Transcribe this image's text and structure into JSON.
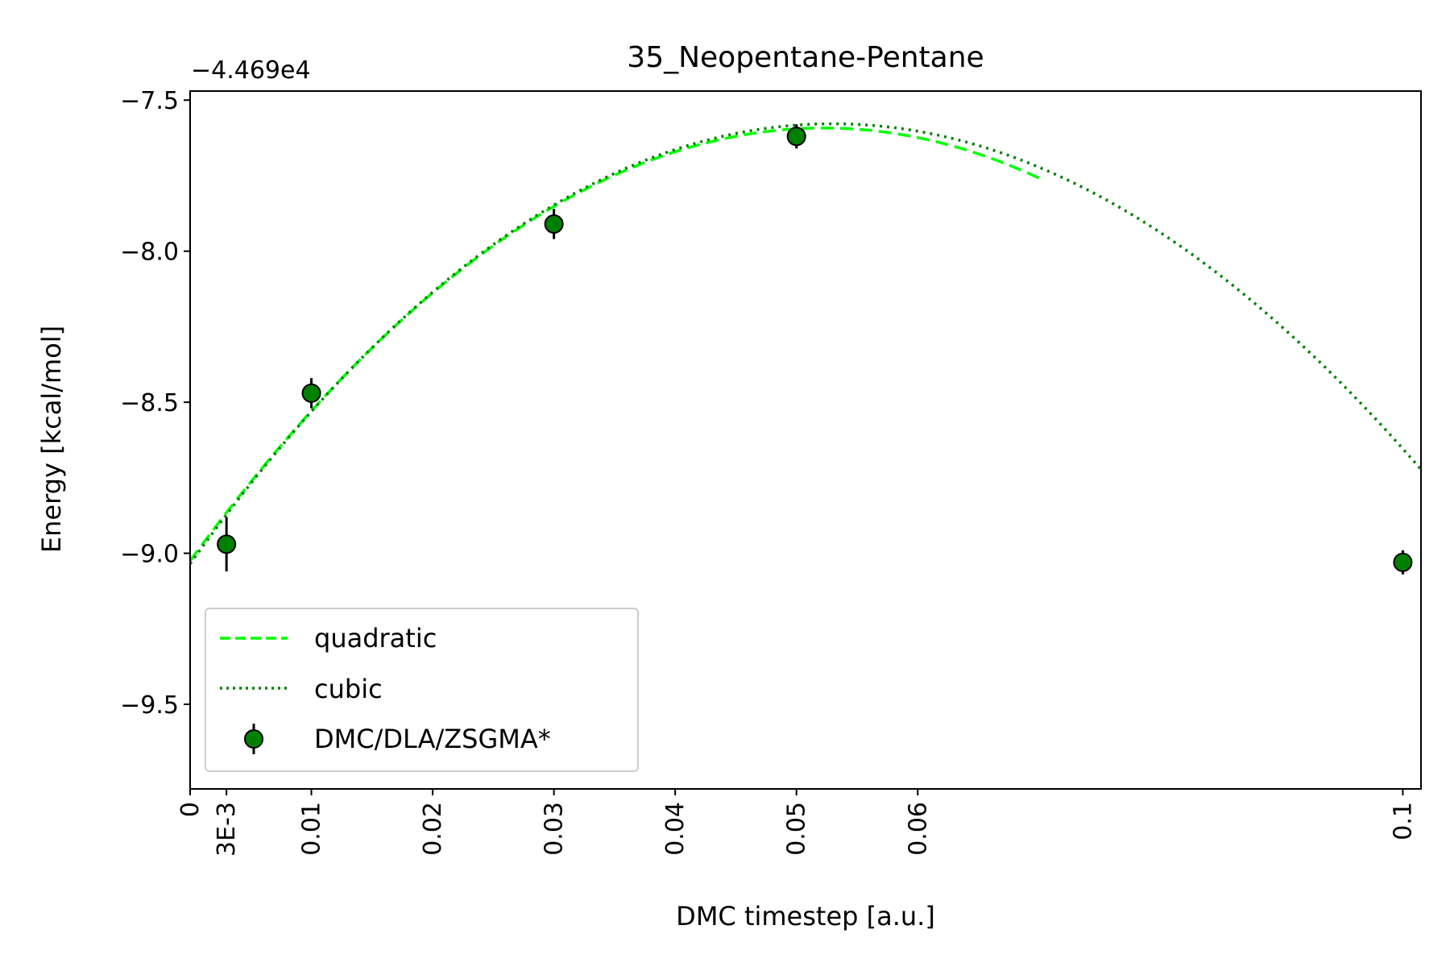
{
  "chart_data": {
    "type": "scatter",
    "title": "35_Neopentane-Pentane",
    "xlabel": "DMC timestep [a.u.]",
    "ylabel": "Energy [kcal/mol]",
    "y_offset_label": "−4.469e4",
    "xlim": [
      0,
      0.1015
    ],
    "ylim": [
      -9.78,
      -7.47
    ],
    "x_ticks": [
      {
        "value": 0,
        "label": "0"
      },
      {
        "value": 0.003,
        "label": "3E-3"
      },
      {
        "value": 0.01,
        "label": "0.01"
      },
      {
        "value": 0.02,
        "label": "0.02"
      },
      {
        "value": 0.03,
        "label": "0.03"
      },
      {
        "value": 0.04,
        "label": "0.04"
      },
      {
        "value": 0.05,
        "label": "0.05"
      },
      {
        "value": 0.06,
        "label": "0.06"
      },
      {
        "value": 0.1,
        "label": "0.1"
      }
    ],
    "y_ticks": [
      {
        "value": -7.5,
        "label": "−7.5"
      },
      {
        "value": -8.0,
        "label": "−8.0"
      },
      {
        "value": -8.5,
        "label": "−8.5"
      },
      {
        "value": -9.0,
        "label": "−9.0"
      },
      {
        "value": -9.5,
        "label": "−9.5"
      }
    ],
    "grid": false,
    "legend_position": "lower-left",
    "series": [
      {
        "name": "quadratic",
        "kind": "line",
        "style": "dashed",
        "color": "#00ff00",
        "x_range": [
          0,
          0.07
        ],
        "coefficients": [
          -9.025,
          54.85,
          -525
        ]
      },
      {
        "name": "cubic",
        "kind": "line",
        "style": "dotted",
        "color": "#008000",
        "x_range": [
          0,
          0.1015
        ],
        "coefficients": [
          -9.035,
          55.9,
          -553.3,
          324
        ]
      },
      {
        "name": "DMC/DLA/ZSGMA*",
        "kind": "errorbar",
        "color": "#008000",
        "points": [
          {
            "x": 0.003,
            "y": -8.97,
            "err": 0.09
          },
          {
            "x": 0.01,
            "y": -8.47,
            "err": 0.05
          },
          {
            "x": 0.03,
            "y": -7.91,
            "err": 0.05
          },
          {
            "x": 0.05,
            "y": -7.62,
            "err": 0.04
          },
          {
            "x": 0.1,
            "y": -9.03,
            "err": 0.04
          }
        ]
      }
    ]
  }
}
